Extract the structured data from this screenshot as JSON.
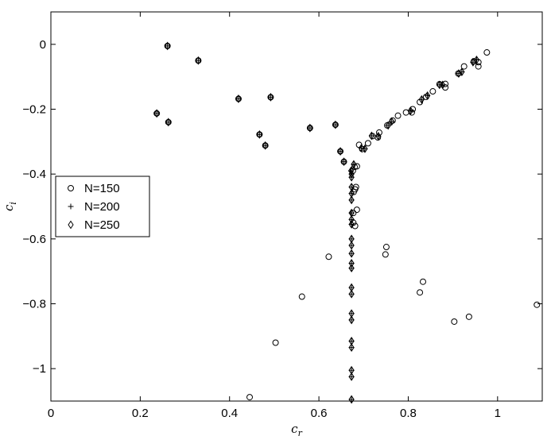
{
  "chart_data": {
    "type": "scatter",
    "xlabel": "c_r",
    "ylabel": "c_i",
    "xlim": [
      0,
      1.1
    ],
    "ylim": [
      -1.1,
      0.1
    ],
    "x_ticks": [
      0,
      0.2,
      0.4,
      0.6,
      0.8,
      1
    ],
    "y_ticks": [
      0,
      -0.2,
      -0.4,
      -0.6,
      -0.8,
      -1
    ],
    "x_tick_labels": [
      "0",
      "0.2",
      "0.4",
      "0.6",
      "0.8",
      "1"
    ],
    "y_tick_labels": [
      "0",
      "−0.2",
      "−0.4",
      "−0.6",
      "−0.8",
      "−1"
    ],
    "grid": false,
    "legend_position": "center-left",
    "series": [
      {
        "name": "N=150",
        "marker": "circle",
        "points": [
          [
            0.261,
            -0.005
          ],
          [
            0.33,
            -0.05
          ],
          [
            0.237,
            -0.213
          ],
          [
            0.263,
            -0.24
          ],
          [
            0.42,
            -0.168
          ],
          [
            0.492,
            -0.163
          ],
          [
            0.467,
            -0.278
          ],
          [
            0.48,
            -0.312
          ],
          [
            0.58,
            -0.258
          ],
          [
            0.637,
            -0.248
          ],
          [
            0.648,
            -0.33
          ],
          [
            0.656,
            -0.362
          ],
          [
            0.676,
            -0.39
          ],
          [
            0.68,
            -0.378
          ],
          [
            0.685,
            -0.376
          ],
          [
            0.69,
            -0.31
          ],
          [
            0.697,
            -0.323
          ],
          [
            0.71,
            -0.305
          ],
          [
            0.72,
            -0.283
          ],
          [
            0.735,
            -0.272
          ],
          [
            0.732,
            -0.287
          ],
          [
            0.753,
            -0.25
          ],
          [
            0.765,
            -0.235
          ],
          [
            0.777,
            -0.22
          ],
          [
            0.795,
            -0.21
          ],
          [
            0.81,
            -0.2
          ],
          [
            0.808,
            -0.21
          ],
          [
            0.826,
            -0.178
          ],
          [
            0.84,
            -0.162
          ],
          [
            0.855,
            -0.145
          ],
          [
            0.87,
            -0.123
          ],
          [
            0.883,
            -0.133
          ],
          [
            0.883,
            -0.122
          ],
          [
            0.912,
            -0.09
          ],
          [
            0.925,
            -0.068
          ],
          [
            0.947,
            -0.052
          ],
          [
            0.957,
            -0.055
          ],
          [
            0.957,
            -0.068
          ],
          [
            0.976,
            -0.025
          ],
          [
            0.683,
            -0.44
          ],
          [
            0.681,
            -0.447
          ],
          [
            0.678,
            -0.455
          ],
          [
            0.685,
            -0.51
          ],
          [
            0.677,
            -0.52
          ],
          [
            0.677,
            -0.55
          ],
          [
            0.681,
            -0.56
          ],
          [
            0.751,
            -0.625
          ],
          [
            0.749,
            -0.648
          ],
          [
            0.622,
            -0.655
          ],
          [
            0.562,
            -0.778
          ],
          [
            0.833,
            -0.732
          ],
          [
            0.826,
            -0.765
          ],
          [
            0.903,
            -0.855
          ],
          [
            0.936,
            -0.84
          ],
          [
            1.088,
            -0.803
          ],
          [
            0.503,
            -0.92
          ],
          [
            0.445,
            -1.088
          ]
        ]
      },
      {
        "name": "N=200",
        "marker": "plus",
        "points": [
          [
            0.261,
            -0.005
          ],
          [
            0.33,
            -0.05
          ],
          [
            0.237,
            -0.213
          ],
          [
            0.263,
            -0.24
          ],
          [
            0.42,
            -0.168
          ],
          [
            0.492,
            -0.163
          ],
          [
            0.467,
            -0.278
          ],
          [
            0.48,
            -0.312
          ],
          [
            0.58,
            -0.258
          ],
          [
            0.637,
            -0.248
          ],
          [
            0.648,
            -0.33
          ],
          [
            0.656,
            -0.362
          ],
          [
            0.672,
            -0.39
          ],
          [
            0.678,
            -0.37
          ],
          [
            0.695,
            -0.32
          ],
          [
            0.703,
            -0.322
          ],
          [
            0.718,
            -0.282
          ],
          [
            0.733,
            -0.283
          ],
          [
            0.755,
            -0.25
          ],
          [
            0.763,
            -0.238
          ],
          [
            0.805,
            -0.205
          ],
          [
            0.83,
            -0.17
          ],
          [
            0.843,
            -0.158
          ],
          [
            0.87,
            -0.125
          ],
          [
            0.877,
            -0.125
          ],
          [
            0.913,
            -0.09
          ],
          [
            0.92,
            -0.085
          ],
          [
            0.945,
            -0.055
          ],
          [
            0.953,
            -0.048
          ],
          [
            0.673,
            -0.4
          ],
          [
            0.673,
            -0.41
          ],
          [
            0.673,
            -0.44
          ],
          [
            0.673,
            -0.46
          ],
          [
            0.673,
            -0.48
          ],
          [
            0.673,
            -0.52
          ],
          [
            0.673,
            -0.54
          ],
          [
            0.673,
            -0.555
          ],
          [
            0.673,
            -0.6
          ],
          [
            0.673,
            -0.62
          ],
          [
            0.673,
            -0.645
          ],
          [
            0.673,
            -0.675
          ],
          [
            0.673,
            -0.69
          ],
          [
            0.673,
            -0.75
          ],
          [
            0.673,
            -0.77
          ],
          [
            0.673,
            -0.83
          ],
          [
            0.673,
            -0.85
          ],
          [
            0.673,
            -0.915
          ],
          [
            0.673,
            -0.935
          ],
          [
            0.673,
            -1.005
          ],
          [
            0.673,
            -1.025
          ],
          [
            0.673,
            -1.095
          ]
        ]
      },
      {
        "name": "N=250",
        "marker": "diamond",
        "points": [
          [
            0.261,
            -0.005
          ],
          [
            0.33,
            -0.05
          ],
          [
            0.237,
            -0.213
          ],
          [
            0.263,
            -0.24
          ],
          [
            0.42,
            -0.168
          ],
          [
            0.492,
            -0.163
          ],
          [
            0.467,
            -0.278
          ],
          [
            0.48,
            -0.312
          ],
          [
            0.58,
            -0.258
          ],
          [
            0.637,
            -0.248
          ],
          [
            0.648,
            -0.33
          ],
          [
            0.656,
            -0.362
          ],
          [
            0.672,
            -0.39
          ],
          [
            0.678,
            -0.37
          ],
          [
            0.695,
            -0.32
          ],
          [
            0.703,
            -0.322
          ],
          [
            0.718,
            -0.282
          ],
          [
            0.733,
            -0.283
          ],
          [
            0.755,
            -0.25
          ],
          [
            0.763,
            -0.238
          ],
          [
            0.805,
            -0.205
          ],
          [
            0.83,
            -0.17
          ],
          [
            0.843,
            -0.158
          ],
          [
            0.87,
            -0.125
          ],
          [
            0.877,
            -0.125
          ],
          [
            0.913,
            -0.09
          ],
          [
            0.92,
            -0.085
          ],
          [
            0.945,
            -0.055
          ],
          [
            0.953,
            -0.048
          ],
          [
            0.673,
            -0.4
          ],
          [
            0.673,
            -0.41
          ],
          [
            0.673,
            -0.44
          ],
          [
            0.673,
            -0.46
          ],
          [
            0.673,
            -0.48
          ],
          [
            0.673,
            -0.52
          ],
          [
            0.673,
            -0.54
          ],
          [
            0.673,
            -0.555
          ],
          [
            0.673,
            -0.6
          ],
          [
            0.673,
            -0.62
          ],
          [
            0.673,
            -0.645
          ],
          [
            0.673,
            -0.675
          ],
          [
            0.673,
            -0.69
          ],
          [
            0.673,
            -0.75
          ],
          [
            0.673,
            -0.77
          ],
          [
            0.673,
            -0.83
          ],
          [
            0.673,
            -0.85
          ],
          [
            0.673,
            -0.915
          ],
          [
            0.673,
            -0.935
          ],
          [
            0.673,
            -1.005
          ],
          [
            0.673,
            -1.025
          ],
          [
            0.673,
            -1.095
          ]
        ]
      }
    ]
  }
}
